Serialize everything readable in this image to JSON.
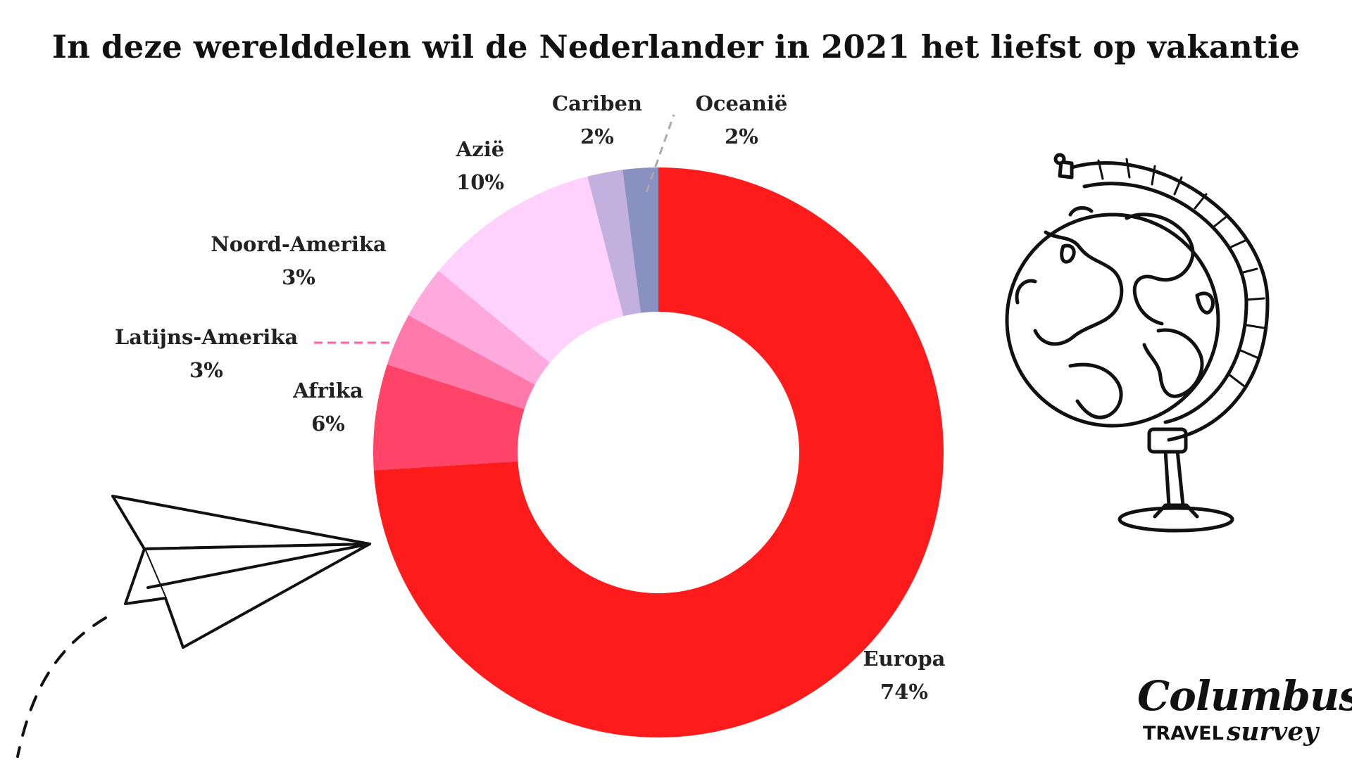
{
  "title": "In deze werelddelen wil de Nederlander in 2021 het liefst op vakantie",
  "chart_data": {
    "type": "pie",
    "title": "In deze werelddelen wil de Nederlander in 2021 het liefst op vakantie",
    "donut": true,
    "slices": [
      {
        "label": "Europa",
        "value": 74,
        "display": "74%",
        "color": "#fe1b1c"
      },
      {
        "label": "Afrika",
        "value": 6,
        "display": "6%",
        "color": "#ff4468"
      },
      {
        "label": "Latijns-Amerika",
        "value": 3,
        "display": "3%",
        "color": "#ff7aaa"
      },
      {
        "label": "Noord-Amerika",
        "value": 3,
        "display": "3%",
        "color": "#ffaadf"
      },
      {
        "label": "Azië",
        "value": 10,
        "display": "10%",
        "color": "#ffd1fd"
      },
      {
        "label": "Cariben",
        "value": 2,
        "display": "2%",
        "color": "#c4b0df"
      },
      {
        "label": "Oceanië",
        "value": 2,
        "display": "2%",
        "color": "#8891bf"
      }
    ]
  },
  "logo": {
    "name": "Columbus",
    "sub1": "TRAVEL",
    "sub2": "survey"
  }
}
